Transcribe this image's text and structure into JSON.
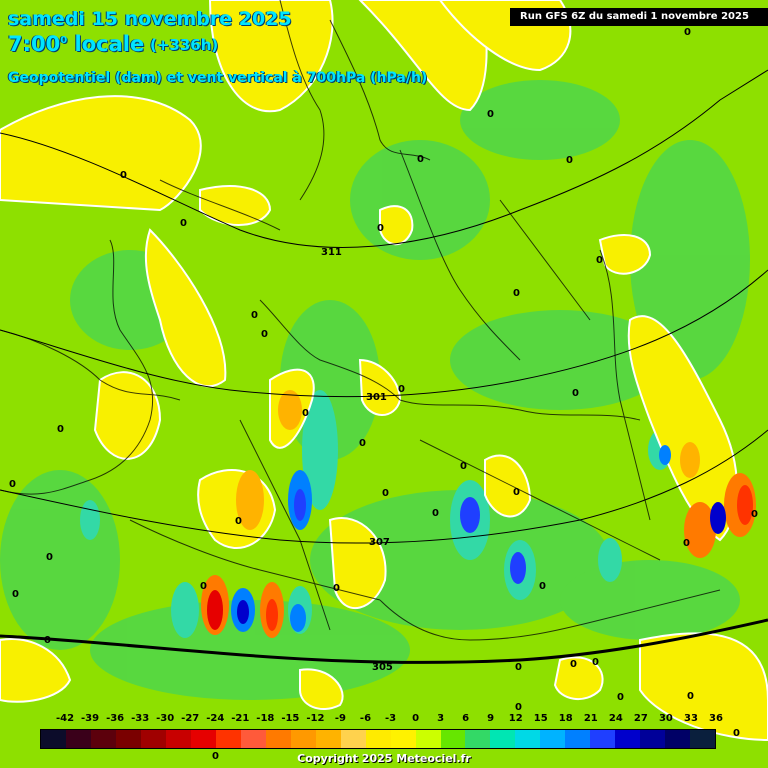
{
  "header": {
    "date": "samedi 15 novembre 2025",
    "time": "7:00",
    "time_suffix": "0",
    "time_label": "locale",
    "lead": "(+336h)",
    "field": "Geopotentiel (dam) et vent vertical à 700hPa (hPa/h)"
  },
  "run_info": "Run GFS 6Z du samedi 1 novembre 2025",
  "copyright": "Copyright 2025 Meteociel.fr",
  "legend": {
    "ticks": [
      "-42",
      "-39",
      "-36",
      "-33",
      "-30",
      "-27",
      "-24",
      "-21",
      "-18",
      "-15",
      "-12",
      "-9",
      "-6",
      "-3",
      "0",
      "3",
      "6",
      "9",
      "12",
      "15",
      "18",
      "21",
      "24",
      "27",
      "30",
      "33",
      "36"
    ],
    "colors": [
      "#0c0c2a",
      "#3a001a",
      "#5c000c",
      "#7a0000",
      "#a00000",
      "#c80000",
      "#e60000",
      "#ff3300",
      "#ff5a3a",
      "#ff7a00",
      "#ff9900",
      "#ffb300",
      "#ffd24d",
      "#ffeb00",
      "#fff200",
      "#ccff00",
      "#66e600",
      "#33d966",
      "#00e6b3",
      "#00d9e6",
      "#00b3ff",
      "#0080ff",
      "#1f3fff",
      "#0000cc",
      "#000099",
      "#000066",
      "#0a1f3d"
    ]
  },
  "map": {
    "isoline_labels": [
      "311",
      "301",
      "307",
      "305"
    ],
    "contour_labels": [
      "0",
      "0",
      "0",
      "0",
      "0",
      "0",
      "0",
      "0",
      "0",
      "0",
      "0",
      "0",
      "0",
      "0",
      "0",
      "0",
      "0",
      "0",
      "0",
      "0",
      "0",
      "0",
      "0",
      "0",
      "0",
      "0",
      "0",
      "0",
      "0",
      "0",
      "0",
      "0",
      "0",
      "0",
      "0",
      "0",
      "0",
      "0"
    ]
  }
}
